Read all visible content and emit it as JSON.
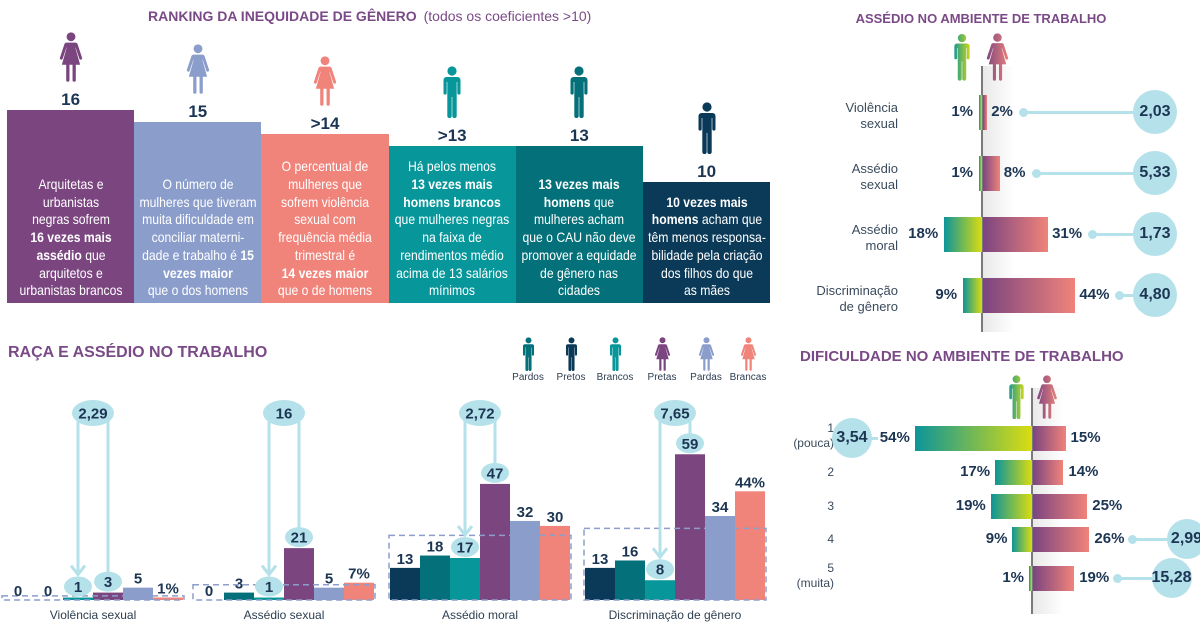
{
  "chart_data": [
    {
      "type": "bar",
      "title": "RANKING DA INEQUIDADE DE GÊNERO",
      "subtitle": "(todos os coeficientes >10)",
      "items": [
        {
          "value_label": "16",
          "value": 16,
          "icon": "woman-icon",
          "color": "#7b4580",
          "text": [
            [
              {
                "t": "Arquitetas e"
              }
            ],
            [
              {
                "t": "urbanistas"
              }
            ],
            [
              {
                "t": "negras sofrem"
              }
            ],
            [
              {
                "t": "16 vezes mais",
                "b": true
              }
            ],
            [
              {
                "t": "assédio",
                "b": true
              },
              {
                "t": " que"
              }
            ],
            [
              {
                "t": "arquitetos e"
              }
            ],
            [
              {
                "t": "urbanistas brancos"
              }
            ]
          ]
        },
        {
          "value_label": "15",
          "value": 15,
          "icon": "woman-icon",
          "color": "#8b9dcb",
          "text": [
            [
              {
                "t": "O número de"
              }
            ],
            [
              {
                "t": "mulheres que tiveram"
              }
            ],
            [
              {
                "t": "muita dificuldade em"
              }
            ],
            [
              {
                "t": "conciliar materni-"
              }
            ],
            [
              {
                "t": "dade e trabalho é "
              },
              {
                "t": "15",
                "b": true
              }
            ],
            [
              {
                "t": "vezes maior",
                "b": true
              }
            ],
            [
              {
                "t": "que o dos homens"
              }
            ]
          ]
        },
        {
          "value_label": ">14",
          "value": 14,
          "icon": "woman-icon",
          "color": "#f0837a",
          "text": [
            [
              {
                "t": "O percentual de"
              }
            ],
            [
              {
                "t": "mulheres que"
              }
            ],
            [
              {
                "t": "sofrem violência"
              }
            ],
            [
              {
                "t": "sexual com"
              }
            ],
            [
              {
                "t": "frequência média"
              }
            ],
            [
              {
                "t": "trimestral é"
              }
            ],
            [
              {
                "t": "14 vezes maior",
                "b": true
              }
            ],
            [
              {
                "t": "que o de homens"
              }
            ]
          ]
        },
        {
          "value_label": ">13",
          "value": 13,
          "icon": "man-icon",
          "color": "#07979a",
          "text": [
            [
              {
                "t": "Há pelos menos"
              }
            ],
            [
              {
                "t": "13 vezes mais",
                "b": true
              }
            ],
            [
              {
                "t": "homens brancos",
                "b": true
              }
            ],
            [
              {
                "t": "que mulheres negras"
              }
            ],
            [
              {
                "t": "na faixa de"
              }
            ],
            [
              {
                "t": "rendimentos médio"
              }
            ],
            [
              {
                "t": "acima de 13 salários"
              }
            ],
            [
              {
                "t": "mínimos"
              }
            ]
          ]
        },
        {
          "value_label": "13",
          "value": 13,
          "icon": "man-icon",
          "color": "#04717a",
          "text": [
            [
              {
                "t": "13 vezes mais",
                "b": true
              }
            ],
            [
              {
                "t": "homens",
                "b": true
              },
              {
                "t": " que"
              }
            ],
            [
              {
                "t": "mulheres acham"
              }
            ],
            [
              {
                "t": "que o CAU não deve"
              }
            ],
            [
              {
                "t": "promover a equidade"
              }
            ],
            [
              {
                "t": "de gênero nas"
              }
            ],
            [
              {
                "t": "cidades"
              }
            ]
          ]
        },
        {
          "value_label": "10",
          "value": 10,
          "icon": "man-icon",
          "color": "#0b3a58",
          "text": [
            [
              {
                "t": "10 vezes mais",
                "b": true
              }
            ],
            [
              {
                "t": "homens",
                "b": true
              },
              {
                "t": " acham que"
              }
            ],
            [
              {
                "t": "têm menos responsa-"
              }
            ],
            [
              {
                "t": "bilidade pela criação"
              }
            ],
            [
              {
                "t": "dos filhos do que"
              }
            ],
            [
              {
                "t": "as mães"
              }
            ]
          ]
        }
      ]
    },
    {
      "type": "bar",
      "title": "ASSÉDIO NO AMBIENTE DE TRABALHO",
      "series_icons": [
        "man-icon",
        "woman-icon"
      ],
      "rows": [
        {
          "label": [
            "Violência",
            "sexual"
          ],
          "male": 1,
          "female": 2,
          "male_label": "1%",
          "female_label": "2%",
          "ratio": "2,03"
        },
        {
          "label": [
            "Assédio",
            "sexual"
          ],
          "male": 1,
          "female": 8,
          "male_label": "1%",
          "female_label": "8%",
          "ratio": "5,33"
        },
        {
          "label": [
            "Assédio",
            "moral"
          ],
          "male": 18,
          "female": 31,
          "male_label": "18%",
          "female_label": "31%",
          "ratio": "1,73"
        },
        {
          "label": [
            "Discriminação",
            "de gênero"
          ],
          "male": 9,
          "female": 44,
          "male_label": "9%",
          "female_label": "44%",
          "ratio": "4,80"
        }
      ]
    },
    {
      "type": "bar",
      "title": "RAÇA E ASSÉDIO NO TRABALHO",
      "legend": [
        {
          "label": "Pardos",
          "icon": "man-icon",
          "color": "#04717a"
        },
        {
          "label": "Pretos",
          "icon": "man-icon",
          "color": "#0b3a58"
        },
        {
          "label": "Brancos",
          "icon": "man-icon",
          "color": "#07979a"
        },
        {
          "label": "Pretas",
          "icon": "woman-icon",
          "color": "#7b4580"
        },
        {
          "label": "Pardas",
          "icon": "woman-icon",
          "color": "#8b9dcb"
        },
        {
          "label": "Brancas",
          "icon": "woman-icon",
          "color": "#f0837a"
        }
      ],
      "series_order": [
        "Pretos",
        "Pardos",
        "Brancos",
        "Pretas",
        "Pardas",
        "Brancas"
      ],
      "groups": [
        {
          "category": "Violência sexual",
          "values": [
            0,
            0,
            1,
            3,
            5,
            1
          ],
          "labels": [
            "0",
            "0",
            "1",
            "3",
            "5",
            "1%"
          ],
          "ratio": "2,29",
          "highlight": [
            "Brancos",
            "Pretas"
          ]
        },
        {
          "category": "Assédio sexual",
          "values": [
            0,
            3,
            1,
            21,
            5,
            7
          ],
          "labels": [
            "0",
            "3",
            "1",
            "21",
            "5",
            "7%"
          ],
          "ratio": "16",
          "highlight": [
            "Brancos",
            "Pretas"
          ]
        },
        {
          "category": "Assédio moral",
          "values": [
            13,
            18,
            17,
            47,
            32,
            30
          ],
          "labels": [
            "13",
            "18",
            "17",
            "47",
            "32",
            "30"
          ],
          "ratio": "2,72",
          "highlight": [
            "Brancos",
            "Pretas"
          ]
        },
        {
          "category": "Discriminação de gênero",
          "values": [
            13,
            16,
            8,
            59,
            34,
            44
          ],
          "labels": [
            "13",
            "16",
            "8",
            "59",
            "34",
            "44%"
          ],
          "ratio": "7,65",
          "highlight": [
            "Brancos",
            "Pretas"
          ]
        }
      ]
    },
    {
      "type": "bar",
      "title": "DIFICULDADE NO AMBIENTE DE TRABALHO",
      "series_icons": [
        "man-icon",
        "woman-icon"
      ],
      "rows": [
        {
          "level": "1",
          "level_note": "(pouca)",
          "male": 54,
          "female": 15,
          "male_label": "54%",
          "female_label": "15%",
          "ratio": "3,54",
          "ratio_side": "left"
        },
        {
          "level": "2",
          "male": 17,
          "female": 14,
          "male_label": "17%",
          "female_label": "14%"
        },
        {
          "level": "3",
          "male": 19,
          "female": 25,
          "male_label": "19%",
          "female_label": "25%"
        },
        {
          "level": "4",
          "male": 9,
          "female": 26,
          "male_label": "9%",
          "female_label": "26%",
          "ratio": "2,99",
          "ratio_side": "right"
        },
        {
          "level": "5",
          "level_note": "(muita)",
          "male": 1,
          "female": 19,
          "male_label": "1%",
          "female_label": "19%",
          "ratio": "15,28",
          "ratio_side": "right"
        }
      ]
    }
  ]
}
